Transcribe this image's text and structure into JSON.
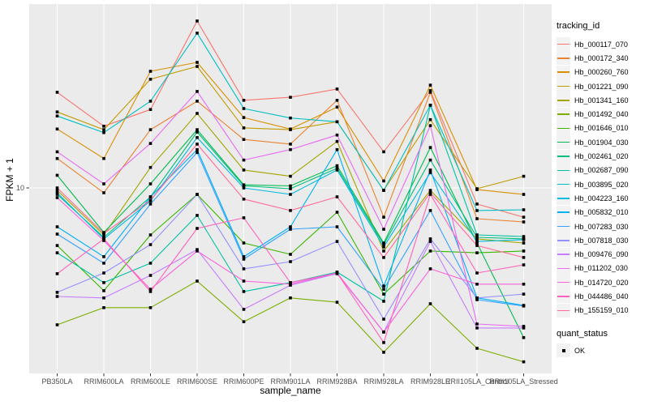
{
  "figure": {
    "y_axis_title": "FPKM + 1",
    "x_axis_title": "sample_name",
    "y_tick_labels": [
      "10"
    ],
    "legend": {
      "title": "tracking_id"
    },
    "quant_legend": {
      "title": "quant_status",
      "items": [
        {
          "label": "OK",
          "marker": "black-square"
        }
      ]
    },
    "colors": {
      "background": "#FFFFFF",
      "panel_bg": "#EBEBEB",
      "gridline": "#FFFFFF",
      "marker": "#000000",
      "legend_key_bg": "#F2F2F2",
      "axis_text": "#4D4D4D",
      "tick_mark": "#333333",
      "title_text": "#000000"
    }
  },
  "chart_data": {
    "type": "line",
    "yscale": "log10",
    "ylabel": "FPKM + 1",
    "xlabel": "sample_name",
    "ylim_approx": [
      1.6,
      55
    ],
    "y_major_break": 10,
    "grid": "white-major-on-gray-panel",
    "legend_position": "right",
    "marker": "black-square",
    "categories": [
      "PB350LA",
      "RRIM600LA",
      "RRIM600LE",
      "RRIM600SE",
      "RRIM600PE",
      "RRIM901LA",
      "RRIM928BA",
      "RRIM928LA",
      "RRIM928LE",
      "RRII105LA_Control",
      "RRII105LA_Stressed"
    ],
    "series": [
      {
        "name": "Hb_000117_070",
        "color": "#F8766D",
        "values": [
          25.3,
          18.2,
          21.4,
          50.5,
          23.4,
          24.1,
          26.1,
          14.2,
          25.7,
          8.55,
          7.53
        ]
      },
      {
        "name": "Hb_000172_340",
        "color": "#EA8331",
        "values": [
          13.3,
          9.54,
          17.6,
          23.2,
          16.0,
          15.3,
          23.4,
          7.53,
          25.3,
          7.42,
          7.19
        ]
      },
      {
        "name": "Hb_000260_760",
        "color": "#D89000",
        "values": [
          17.7,
          13.3,
          31.0,
          33.8,
          19.8,
          17.7,
          21.9,
          10.7,
          27.1,
          9.84,
          9.39
        ]
      },
      {
        "name": "Hb_001221_090",
        "color": "#C09B00",
        "values": [
          20.9,
          17.6,
          28.7,
          32.5,
          17.9,
          17.6,
          19.0,
          9.77,
          19.4,
          9.92,
          11.2
        ]
      },
      {
        "name": "Hb_001341_160",
        "color": "#A3A500",
        "values": [
          9.77,
          6.34,
          12.2,
          20.6,
          11.9,
          11.2,
          15.7,
          5.42,
          9.77,
          6.1,
          5.86
        ]
      },
      {
        "name": "Hb_001492_040",
        "color": "#7CAE00",
        "values": [
          2.65,
          3.13,
          3.13,
          4.05,
          2.73,
          3.44,
          3.3,
          2.03,
          3.25,
          2.11,
          1.85
        ]
      },
      {
        "name": "Hb_001646_010",
        "color": "#39B600",
        "values": [
          5.72,
          3.69,
          6.34,
          9.39,
          5.86,
          5.25,
          7.9,
          3.57,
          5.42,
          5.33,
          5.42
        ]
      },
      {
        "name": "Hb_001904_030",
        "color": "#00BB4E",
        "values": [
          11.3,
          6.49,
          10.4,
          17.6,
          10.3,
          10.2,
          12.4,
          5.86,
          14.8,
          5.86,
          2.34
        ]
      },
      {
        "name": "Hb_002461_020",
        "color": "#00BF7D",
        "values": [
          9.39,
          6.19,
          9.17,
          17.2,
          10.2,
          9.92,
          12.1,
          5.77,
          13.1,
          6.19,
          6.1
        ]
      },
      {
        "name": "Hb_002687_090",
        "color": "#00C1A3",
        "values": [
          5.33,
          3.99,
          4.82,
          7.66,
          3.66,
          3.99,
          4.42,
          3.33,
          22.3,
          6.34,
          6.24
        ]
      },
      {
        "name": "Hb_003895_020",
        "color": "#00BFC4",
        "values": [
          20.1,
          17.1,
          23.2,
          44.9,
          21.6,
          19.7,
          19.0,
          9.77,
          22.3,
          8.03,
          8.09
        ]
      },
      {
        "name": "Hb_004223_160",
        "color": "#00BAE0",
        "values": [
          9.54,
          6.1,
          8.82,
          16.3,
          10.0,
          9.39,
          11.9,
          5.64,
          11.6,
          5.95,
          6.05
        ]
      },
      {
        "name": "Hb_005832_010",
        "color": "#00B0F6",
        "values": [
          6.86,
          5.13,
          9.17,
          14.5,
          5.13,
          6.86,
          14.5,
          3.86,
          11.9,
          3.44,
          3.2
        ]
      },
      {
        "name": "Hb_007283_030",
        "color": "#35A2FF",
        "values": [
          6.39,
          4.82,
          8.55,
          14.1,
          5.01,
          6.7,
          6.86,
          3.74,
          8.03,
          3.38,
          3.18
        ]
      },
      {
        "name": "Hb_007818_030",
        "color": "#9590FF",
        "values": [
          3.63,
          4.38,
          5.77,
          9.39,
          4.56,
          4.89,
          5.95,
          2.8,
          6.1,
          3.44,
          3.57
        ]
      },
      {
        "name": "Hb_009476_090",
        "color": "#C77CFF",
        "values": [
          3.49,
          3.44,
          4.28,
          5.5,
          3.08,
          3.89,
          4.35,
          2.47,
          5.95,
          2.57,
          2.57
        ]
      },
      {
        "name": "Hb_011202_030",
        "color": "#E76BF3",
        "values": [
          14.2,
          10.4,
          15.4,
          25.5,
          13.1,
          14.5,
          16.7,
          6.7,
          18.3,
          2.67,
          2.61
        ]
      },
      {
        "name": "Hb_014720_020",
        "color": "#FA62DB",
        "values": [
          9.1,
          6.0,
          3.74,
          5.42,
          4.05,
          3.93,
          4.38,
          2.47,
          4.56,
          3.93,
          3.93
        ]
      },
      {
        "name": "Hb_044486_040",
        "color": "#FF62BC",
        "values": [
          4.35,
          6.1,
          3.66,
          6.75,
          7.48,
          3.99,
          4.38,
          2.23,
          9.39,
          4.38,
          4.74
        ]
      },
      {
        "name": "Hb_155159_010",
        "color": "#FF6A98",
        "values": [
          10.0,
          6.44,
          8.88,
          15.3,
          8.97,
          8.03,
          9.17,
          5.09,
          9.54,
          5.72,
          5.09
        ]
      }
    ]
  }
}
